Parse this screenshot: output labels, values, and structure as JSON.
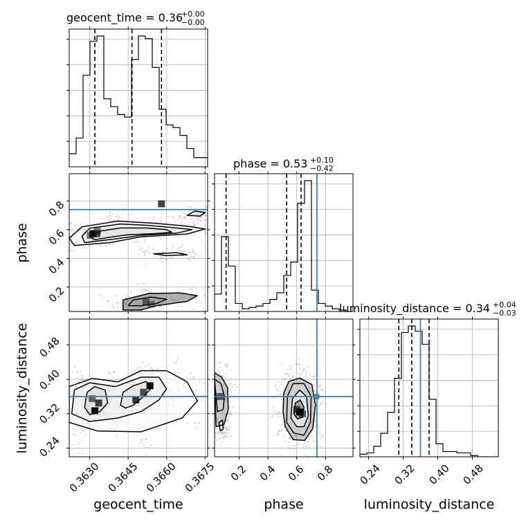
{
  "chart_data": {
    "type": "corner",
    "parameters": [
      "geocent_time",
      "phase",
      "luminosity_distance"
    ],
    "truths": {
      "phase": 0.74,
      "luminosity_distance": 0.36
    },
    "colors": {
      "truth": "#4682b4",
      "hist": "#000000",
      "grid": "#b0b0b0",
      "scatter": "#9a9a9a"
    },
    "titles": [
      {
        "param": "geocent_time",
        "text": "geocent_time = 0.36",
        "plus": "+0.00",
        "minus": "−0.00"
      },
      {
        "param": "phase",
        "text": "phase = 0.53",
        "plus": "+0.10",
        "minus": "−0.42"
      },
      {
        "param": "luminosity_distance",
        "text": "luminosity_distance = 0.34",
        "plus": "+0.04",
        "minus": "−0.03"
      }
    ],
    "axes": {
      "geocent_time": {
        "range": [
          0.3622,
          0.3676
        ],
        "ticks": [
          0.363,
          0.3645,
          0.366,
          0.3675
        ],
        "tick_labels": [
          "0.3630",
          "0.3645",
          "0.3660",
          "0.3675"
        ],
        "label": "geocent_time"
      },
      "phase": {
        "range": [
          0.03,
          0.99
        ],
        "ticks": [
          0.2,
          0.4,
          0.6,
          0.8
        ],
        "tick_labels": [
          "0.2",
          "0.4",
          "0.6",
          "0.8"
        ],
        "label": "phase"
      },
      "luminosity_distance": {
        "range": [
          0.22,
          0.54
        ],
        "ticks": [
          0.24,
          0.32,
          0.4,
          0.48
        ],
        "tick_labels": [
          "0.24",
          "0.32",
          "0.40",
          "0.48"
        ],
        "label": "luminosity_distance"
      }
    },
    "histograms": {
      "geocent_time": {
        "edges": [
          0.3622,
          0.36247,
          0.36274,
          0.36301,
          0.36328,
          0.36355,
          0.36382,
          0.36409,
          0.36436,
          0.36463,
          0.3649,
          0.36517,
          0.36544,
          0.36571,
          0.36598,
          0.36625,
          0.36652,
          0.36679,
          0.36706,
          0.36733,
          0.3676
        ],
        "counts": [
          0.1,
          0.22,
          0.7,
          0.96,
          1.0,
          0.52,
          0.46,
          0.4,
          0.38,
          0.82,
          1.0,
          0.98,
          0.76,
          0.44,
          0.32,
          0.3,
          0.24,
          0.14,
          0.07,
          0.07
        ],
        "quantiles": [
          0.3632,
          0.36465,
          0.3658
        ]
      },
      "phase": {
        "edges": [
          0.03,
          0.078,
          0.126,
          0.174,
          0.222,
          0.27,
          0.318,
          0.366,
          0.414,
          0.462,
          0.51,
          0.558,
          0.606,
          0.654,
          0.702,
          0.75,
          0.798,
          0.846,
          0.894,
          0.942,
          0.99
        ],
        "counts": [
          0.13,
          0.56,
          0.34,
          0.06,
          0.02,
          0.03,
          0.04,
          0.06,
          0.09,
          0.14,
          0.27,
          0.37,
          0.81,
          0.98,
          0.16,
          0.06,
          0.04,
          0.02,
          0.01,
          0.0
        ],
        "quantiles": [
          0.11,
          0.53,
          0.63
        ]
      },
      "luminosity_distance": {
        "edges": [
          0.22,
          0.236,
          0.252,
          0.268,
          0.284,
          0.3,
          0.316,
          0.332,
          0.348,
          0.364,
          0.38,
          0.396,
          0.412,
          0.428,
          0.444,
          0.46,
          0.476,
          0.492,
          0.508,
          0.524,
          0.54
        ],
        "counts": [
          0.02,
          0.03,
          0.08,
          0.18,
          0.34,
          0.6,
          0.95,
          1.0,
          0.96,
          0.86,
          0.44,
          0.1,
          0.04,
          0.04,
          0.03,
          0.03,
          0.01,
          0.0,
          0.0,
          0.0
        ],
        "quantiles": [
          0.31,
          0.34,
          0.38
        ]
      }
    },
    "density_panels": [
      {
        "x": "geocent_time",
        "y": "phase",
        "levels": [
          [
            [
              0.363,
              0.55
            ],
            [
              0.3634,
              0.59
            ],
            [
              0.3642,
              0.612
            ],
            [
              0.3652,
              0.612
            ],
            [
              0.366,
              0.6
            ],
            [
              0.3662,
              0.582
            ],
            [
              0.3655,
              0.572
            ],
            [
              0.3645,
              0.565
            ],
            [
              0.3638,
              0.548
            ],
            [
              0.3632,
              0.53
            ]
          ],
          [
            [
              0.3627,
              0.555
            ],
            [
              0.363,
              0.61
            ],
            [
              0.3642,
              0.64
            ],
            [
              0.3653,
              0.63
            ],
            [
              0.3664,
              0.612
            ],
            [
              0.367,
              0.6
            ],
            [
              0.3664,
              0.576
            ],
            [
              0.365,
              0.56
            ],
            [
              0.364,
              0.535
            ],
            [
              0.3628,
              0.51
            ]
          ],
          [
            [
              0.3622,
              0.54
            ],
            [
              0.3627,
              0.62
            ],
            [
              0.3641,
              0.66
            ],
            [
              0.3655,
              0.645
            ],
            [
              0.3668,
              0.625
            ],
            [
              0.3675,
              0.605
            ],
            [
              0.3668,
              0.57
            ],
            [
              0.365,
              0.55
            ],
            [
              0.3638,
              0.51
            ],
            [
              0.3624,
              0.49
            ]
          ],
          [
            [
              0.3643,
              0.04
            ],
            [
              0.3643,
              0.11
            ],
            [
              0.3653,
              0.155
            ],
            [
              0.3665,
              0.16
            ],
            [
              0.3672,
              0.14
            ],
            [
              0.3668,
              0.1
            ],
            [
              0.3656,
              0.07
            ],
            [
              0.365,
              0.04
            ]
          ],
          [
            [
              0.3645,
              0.07
            ],
            [
              0.3647,
              0.11
            ],
            [
              0.3654,
              0.13
            ],
            [
              0.366,
              0.115
            ],
            [
              0.3656,
              0.085
            ],
            [
              0.365,
              0.07
            ]
          ],
          [
            [
              0.3668,
              0.7
            ],
            [
              0.3671,
              0.73
            ],
            [
              0.3675,
              0.72
            ],
            [
              0.3673,
              0.695
            ]
          ],
          [
            [
              0.3655,
              0.432
            ],
            [
              0.3664,
              0.44
            ],
            [
              0.3668,
              0.425
            ],
            [
              0.366,
              0.42
            ]
          ]
        ],
        "peaks": [
          [
            0.36312,
            0.572,
            0.95
          ],
          [
            0.36328,
            0.572,
            0.65
          ],
          [
            0.36302,
            0.56,
            0.35
          ],
          [
            0.3633,
            0.59,
            0.3
          ],
          [
            0.3652,
            0.095,
            0.35
          ],
          [
            0.3654,
            0.08,
            0.2
          ],
          [
            0.3658,
            0.78,
            0.7
          ]
        ]
      },
      {
        "x": "geocent_time",
        "y": "luminosity_distance",
        "levels": [
          [
            [
              0.3628,
              0.335
            ],
            [
              0.3629,
              0.37
            ],
            [
              0.3632,
              0.383
            ],
            [
              0.3636,
              0.375
            ],
            [
              0.3637,
              0.345
            ],
            [
              0.3634,
              0.325
            ],
            [
              0.363,
              0.318
            ]
          ],
          [
            [
              0.3642,
              0.34
            ],
            [
              0.3643,
              0.37
            ],
            [
              0.3647,
              0.385
            ],
            [
              0.3652,
              0.395
            ],
            [
              0.3654,
              0.38
            ],
            [
              0.3651,
              0.36
            ],
            [
              0.3647,
              0.34
            ],
            [
              0.3644,
              0.333
            ]
          ],
          [
            [
              0.3623,
              0.32
            ],
            [
              0.3624,
              0.375
            ],
            [
              0.363,
              0.392
            ],
            [
              0.364,
              0.383
            ],
            [
              0.365,
              0.405
            ],
            [
              0.3657,
              0.405
            ],
            [
              0.366,
              0.378
            ],
            [
              0.3657,
              0.352
            ],
            [
              0.365,
              0.325
            ],
            [
              0.3641,
              0.31
            ],
            [
              0.363,
              0.302
            ]
          ],
          [
            [
              0.3622,
              0.3
            ],
            [
              0.3622,
              0.383
            ],
            [
              0.3631,
              0.402
            ],
            [
              0.3641,
              0.394
            ],
            [
              0.365,
              0.42
            ],
            [
              0.366,
              0.42
            ],
            [
              0.3668,
              0.394
            ],
            [
              0.3672,
              0.35
            ],
            [
              0.3666,
              0.31
            ],
            [
              0.365,
              0.278
            ],
            [
              0.3633,
              0.28
            ]
          ]
        ],
        "peaks": [
          [
            0.3632,
            0.327,
            1.0
          ],
          [
            0.36335,
            0.345,
            0.7
          ],
          [
            0.3631,
            0.355,
            0.45
          ],
          [
            0.3648,
            0.352,
            0.75
          ],
          [
            0.3651,
            0.37,
            0.6
          ],
          [
            0.36535,
            0.385,
            1.0
          ]
        ]
      },
      {
        "x": "phase",
        "y": "luminosity_distance",
        "levels": [
          [
            [
              0.52,
              0.29
            ],
            [
              0.505,
              0.325
            ],
            [
              0.51,
              0.368
            ],
            [
              0.545,
              0.395
            ],
            [
              0.62,
              0.403
            ],
            [
              0.705,
              0.388
            ],
            [
              0.73,
              0.34
            ],
            [
              0.71,
              0.285
            ],
            [
              0.655,
              0.258
            ],
            [
              0.575,
              0.26
            ]
          ],
          [
            [
              0.53,
              0.3
            ],
            [
              0.535,
              0.36
            ],
            [
              0.575,
              0.39
            ],
            [
              0.65,
              0.39
            ],
            [
              0.7,
              0.36
            ],
            [
              0.695,
              0.3
            ],
            [
              0.65,
              0.27
            ],
            [
              0.58,
              0.275
            ]
          ],
          [
            [
              0.56,
              0.31
            ],
            [
              0.57,
              0.355
            ],
            [
              0.62,
              0.375
            ],
            [
              0.668,
              0.36
            ],
            [
              0.68,
              0.315
            ],
            [
              0.65,
              0.29
            ],
            [
              0.6,
              0.29
            ]
          ],
          [
            [
              0.58,
              0.32
            ],
            [
              0.59,
              0.345
            ],
            [
              0.625,
              0.352
            ],
            [
              0.65,
              0.335
            ],
            [
              0.64,
              0.312
            ],
            [
              0.605,
              0.308
            ]
          ],
          [
            [
              0.03,
              0.415
            ],
            [
              0.08,
              0.405
            ],
            [
              0.12,
              0.38
            ],
            [
              0.125,
              0.33
            ],
            [
              0.095,
              0.295
            ],
            [
              0.04,
              0.29
            ]
          ],
          [
            [
              0.03,
              0.4
            ],
            [
              0.075,
              0.39
            ],
            [
              0.098,
              0.36
            ],
            [
              0.09,
              0.33
            ],
            [
              0.05,
              0.325
            ]
          ],
          [
            [
              0.06,
              0.3
            ],
            [
              0.085,
              0.305
            ],
            [
              0.09,
              0.285
            ],
            [
              0.07,
              0.28
            ]
          ]
        ],
        "peaks": [
          [
            0.62,
            0.324,
            1.0
          ],
          [
            0.6,
            0.33,
            0.55
          ],
          [
            0.64,
            0.32,
            0.5
          ],
          [
            0.07,
            0.36,
            0.5
          ]
        ]
      }
    ]
  }
}
